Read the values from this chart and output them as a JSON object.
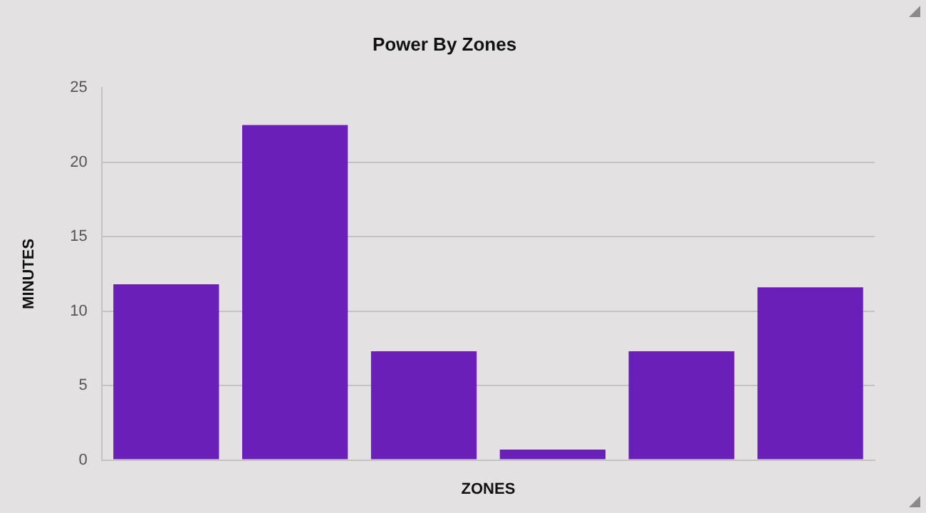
{
  "chart_data": {
    "type": "bar",
    "title": "Power By Zones",
    "xlabel": "ZONES",
    "ylabel": "MINUTES",
    "categories": [
      null,
      null,
      null,
      null,
      null,
      null
    ],
    "values": [
      11.8,
      22.5,
      7.3,
      0.7,
      7.3,
      11.6
    ],
    "color": "#6a1fb8",
    "ylim": [
      0,
      25
    ],
    "yticks": [
      0,
      5,
      10,
      15,
      20,
      25
    ],
    "grid": "y",
    "legend": false,
    "tick_labels": "y"
  }
}
